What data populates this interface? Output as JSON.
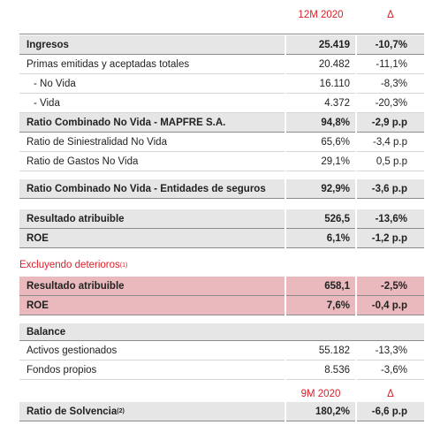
{
  "header": {
    "period": "12M 2020",
    "delta": "Δ"
  },
  "rows": [
    {
      "label": "Ingresos",
      "value": "25.419",
      "delta": "-10,7%"
    },
    {
      "label": "Primas emitidas y aceptadas totales",
      "value": "20.482",
      "delta": "-11,1%"
    },
    {
      "label": "- No Vida",
      "value": "16.110",
      "delta": "-8,3%"
    },
    {
      "label": "- Vida",
      "value": "4.372",
      "delta": "-20,3%"
    },
    {
      "label": "Ratio Combinado No Vida - MAPFRE S.A.",
      "value": "94,8%",
      "delta": "-2,9 p.p"
    },
    {
      "label": "Ratio de Siniestralidad No Vida",
      "value": "65,6%",
      "delta": "-3,4 p.p"
    },
    {
      "label": "Ratio de Gastos No Vida",
      "value": "29,1%",
      "delta": "0,5 p.p"
    },
    {
      "label": "Ratio Combinado No Vida - Entidades de seguros",
      "value": "92,9%",
      "delta": "-3,6 p.p"
    },
    {
      "label": "Resultado atribuible",
      "value": "526,5",
      "delta": "-13,6%"
    },
    {
      "label": "ROE",
      "value": "6,1%",
      "delta": "-1,2 p.p"
    }
  ],
  "note": {
    "label": "Excluyendo deterioros",
    "ref": "(1)"
  },
  "excl_rows": [
    {
      "label": "Resultado atribuible",
      "value": "658,1",
      "delta": "-2,5%"
    },
    {
      "label": "ROE",
      "value": "7,6%",
      "delta": "-0,4 p.p"
    }
  ],
  "balance": {
    "title": "Balance",
    "rows": [
      {
        "label": "Activos gestionados",
        "value": "55.182",
        "delta": "-13,3%"
      },
      {
        "label": "Fondos propios",
        "value": "8.536",
        "delta": "-3,6%"
      }
    ]
  },
  "solvency": {
    "period": "9M 2020",
    "delta": "Δ",
    "label": "Ratio de Solvencia",
    "ref": "(2)",
    "value": "180,2%",
    "change": "-6,6 p.p"
  }
}
